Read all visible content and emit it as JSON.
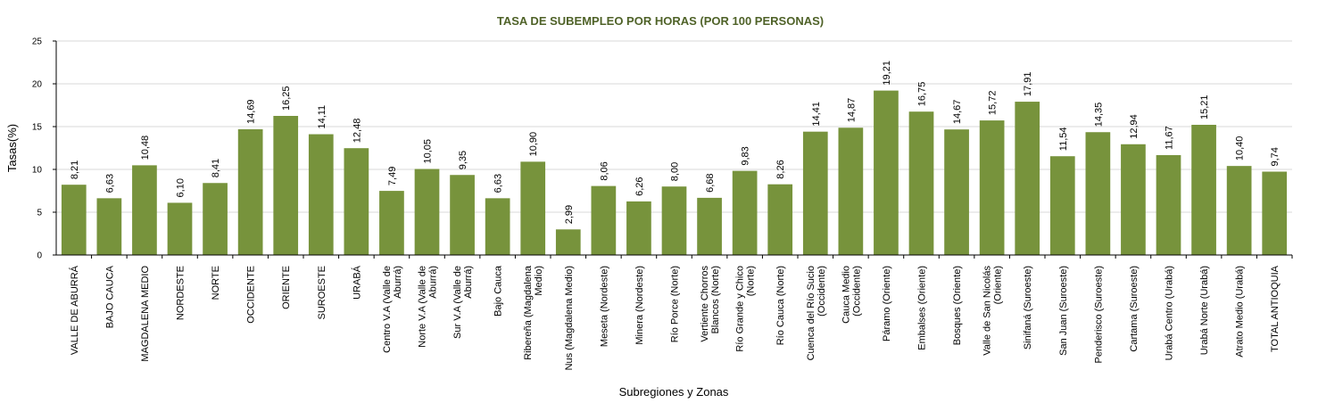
{
  "chart_data": {
    "type": "bar",
    "title": "TASA DE SUBEMPLEO POR HORAS (POR 100 PERSONAS)",
    "xlabel": "Subregiones y Zonas",
    "ylabel": "Tasas(%)",
    "ylim": [
      0,
      25
    ],
    "yticks": [
      "0",
      "5",
      "10",
      "15",
      "20",
      "25"
    ],
    "grid": true,
    "legend": "none",
    "bar_color": "#77933C",
    "title_color": "#4F6228",
    "categories": [
      [
        "VALLE DE ABURRÁ"
      ],
      [
        "BAJO CAUCA"
      ],
      [
        "MAGDALENA MEDIO"
      ],
      [
        "NORDESTE"
      ],
      [
        "NORTE"
      ],
      [
        "OCCIDENTE"
      ],
      [
        "ORIENTE"
      ],
      [
        "SUROESTE"
      ],
      [
        "URABÁ"
      ],
      [
        "Centro V.A (Valle de",
        "Aburrá)"
      ],
      [
        "Norte V.A (Valle de",
        "Aburrá)"
      ],
      [
        "Sur  V.A (Valle de",
        "Aburrá)"
      ],
      [
        "Bajo Cauca"
      ],
      [
        "Ribereña  (Magdalena",
        "Medio)"
      ],
      [
        "Nus  (Magdalena Medio)"
      ],
      [
        "Meseta  (Nordeste)"
      ],
      [
        "Minera  (Nordeste)"
      ],
      [
        "Río Porce   (Norte)"
      ],
      [
        "Vertiente Chorros",
        "Blancos (Norte)"
      ],
      [
        "Río Grande y Chico",
        "(Norte)"
      ],
      [
        "Río Cauca  (Norte)"
      ],
      [
        "Cuenca del Río Sucio",
        "(Occidente)"
      ],
      [
        "Cauca Medio",
        "(Occidente)"
      ],
      [
        "Páramo  (Oriente)"
      ],
      [
        "Embalses  (Oriente)"
      ],
      [
        "Bosques  (Oriente)"
      ],
      [
        "Valle de San Nicolás",
        "(Oriente)"
      ],
      [
        "Sinifaná  (Suroeste)"
      ],
      [
        "San Juan  (Suroeste)"
      ],
      [
        "Penderisco  (Suroeste)"
      ],
      [
        "Cartama  (Suroeste)"
      ],
      [
        "Urabá Centro  (Urabá)"
      ],
      [
        "Urabá Norte  (Urabá)"
      ],
      [
        "Atrato Medio  (Urabá)"
      ],
      [
        "TOTAL ANTIOQUIA"
      ]
    ],
    "values": [
      8.21,
      6.63,
      10.48,
      6.1,
      8.41,
      14.69,
      16.25,
      14.11,
      12.48,
      7.49,
      10.05,
      9.35,
      6.63,
      10.9,
      2.99,
      8.06,
      6.26,
      8.0,
      6.68,
      9.83,
      8.26,
      14.41,
      14.87,
      19.21,
      16.75,
      14.67,
      15.72,
      17.91,
      11.54,
      14.35,
      12.94,
      11.67,
      15.21,
      10.4,
      9.74
    ],
    "data_labels": [
      "8,21",
      "6,63",
      "10,48",
      "6,10",
      "8,41",
      "14,69",
      "16,25",
      "14,11",
      "12,48",
      "7,49",
      "10,05",
      "9,35",
      "6,63",
      "10,90",
      "2,99",
      "8,06",
      "6,26",
      "8,00",
      "6,68",
      "9,83",
      "8,26",
      "14,41",
      "14,87",
      "19,21",
      "16,75",
      "14,67",
      "15,72",
      "17,91",
      "11,54",
      "14,35",
      "12,94",
      "11,67",
      "15,21",
      "10,40",
      "9,74"
    ]
  }
}
